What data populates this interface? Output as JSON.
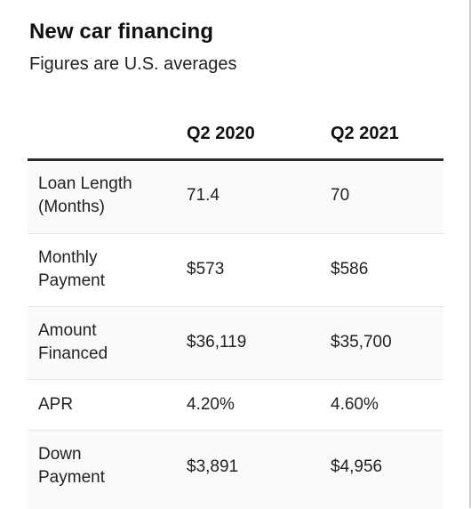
{
  "title": "New car financing",
  "subtitle": "Figures are U.S. averages",
  "table": {
    "columns": [
      "",
      "Q2 2020",
      "Q2 2021"
    ],
    "rows": [
      {
        "label": "Loan Length\n(Months)",
        "q2_2020": "71.4",
        "q2_2021": "70"
      },
      {
        "label": "Monthly\nPayment",
        "q2_2020": "$573",
        "q2_2021": "$586"
      },
      {
        "label": "Amount\nFinanced",
        "q2_2020": "$36,119",
        "q2_2021": "$35,700"
      },
      {
        "label": "APR",
        "q2_2020": "4.20%",
        "q2_2021": "4.60%"
      },
      {
        "label": "Down\nPayment",
        "q2_2020": "$3,891",
        "q2_2021": "$4,956"
      }
    ]
  }
}
